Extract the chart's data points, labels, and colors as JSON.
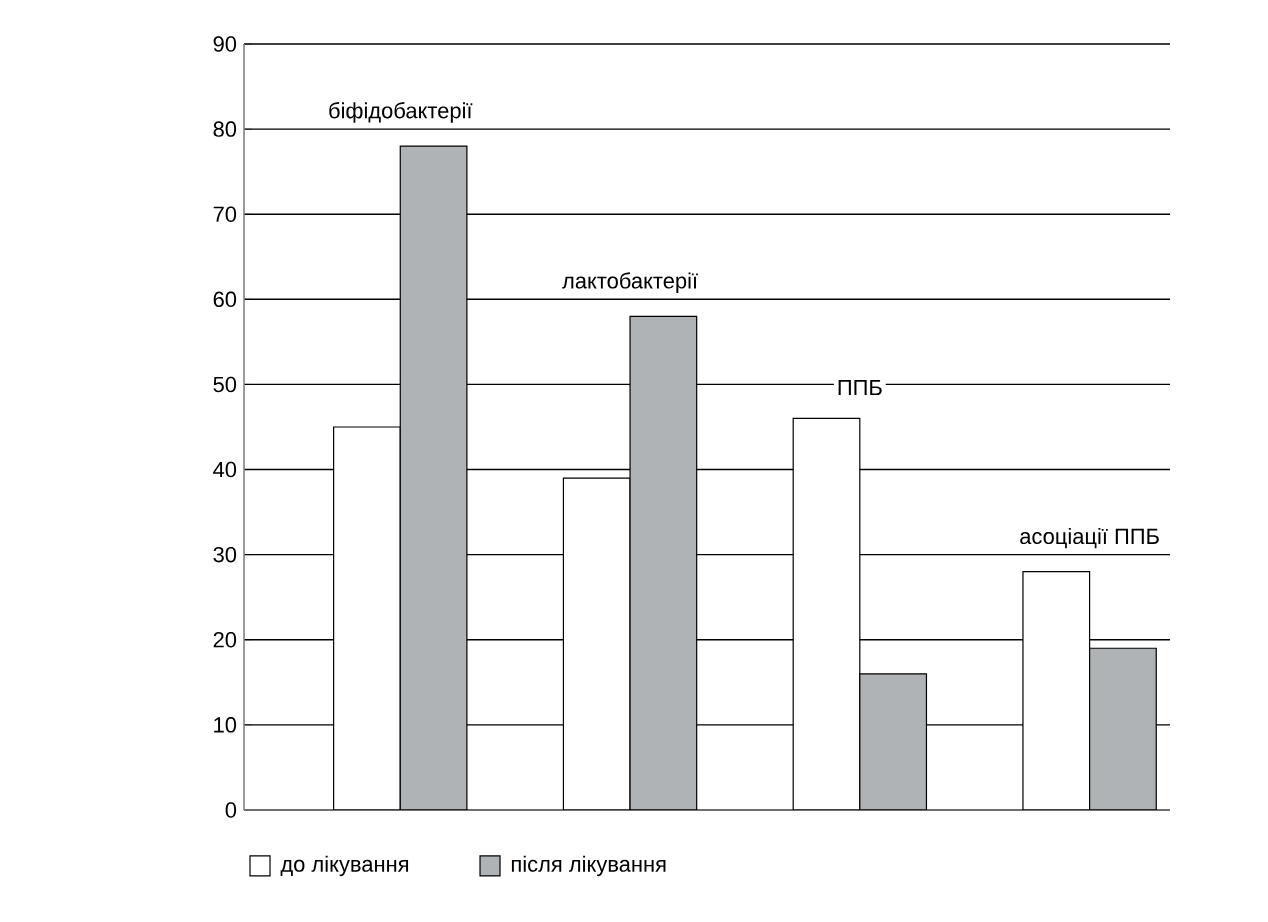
{
  "chart_data": {
    "type": "bar",
    "categories": [
      "біфідобактерії",
      "лактобактерії",
      "ППБ",
      "асоціації ППБ"
    ],
    "series": [
      {
        "name": "до лікування",
        "color": "#ffffff",
        "values": [
          45,
          39,
          46,
          28
        ]
      },
      {
        "name": "після лікування",
        "color": "#b0b3b5",
        "values": [
          78,
          58,
          16,
          19
        ]
      }
    ],
    "ylim": [
      0,
      90
    ],
    "yticks": [
      0,
      10,
      20,
      30,
      40,
      50,
      60,
      70,
      80,
      90
    ],
    "grid": "y",
    "legend": "bottom left"
  }
}
